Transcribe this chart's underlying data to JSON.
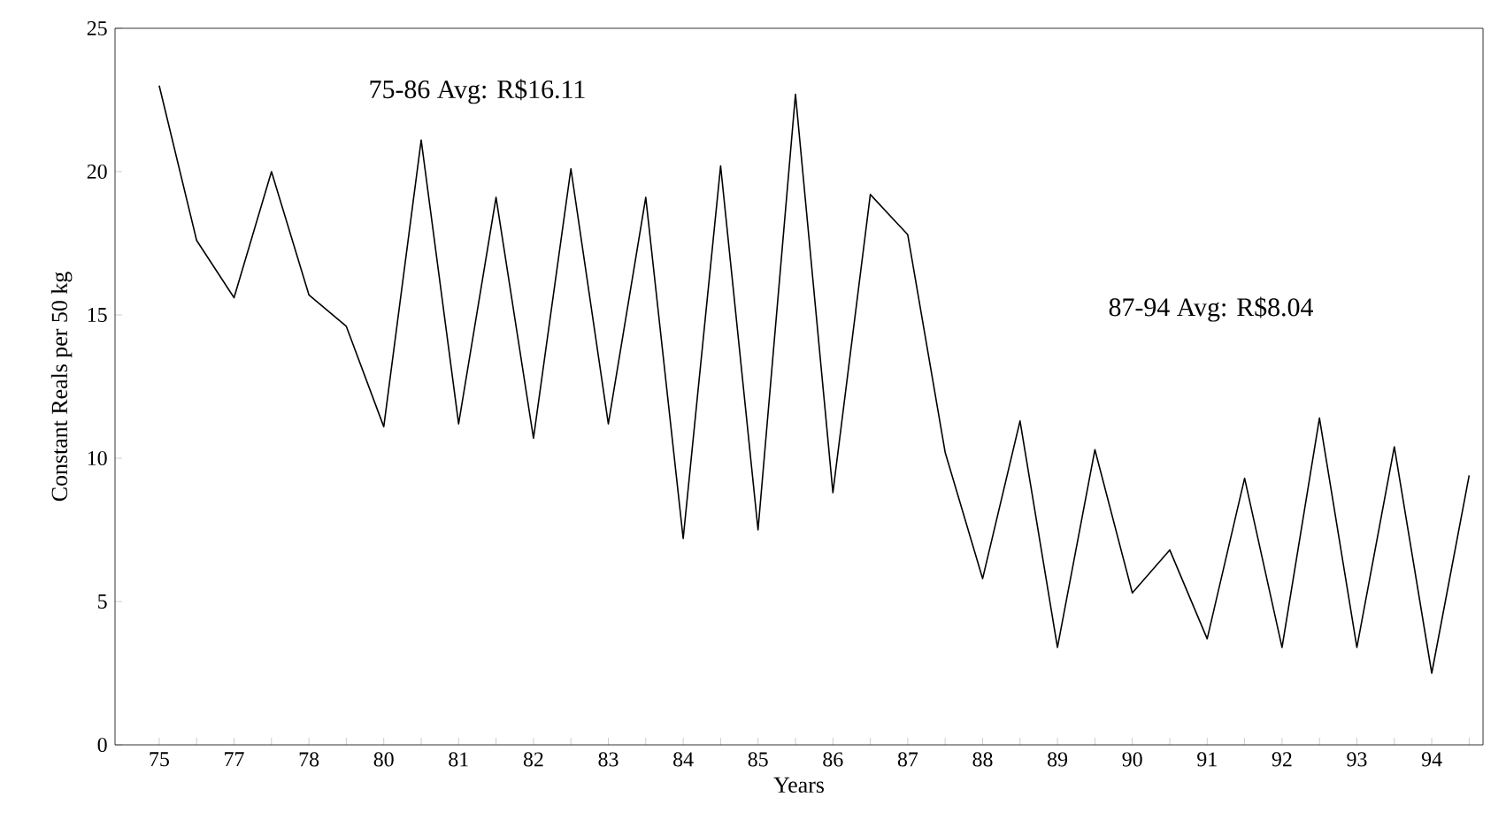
{
  "chart_data": {
    "type": "line",
    "xlabel": "Years",
    "ylabel": "Constant Reals per 50 kg",
    "categories": [
      "75",
      null,
      "77",
      null,
      "78",
      null,
      "80",
      null,
      "81",
      null,
      "82",
      null,
      "83",
      null,
      "84",
      null,
      "85",
      null,
      "86",
      null,
      "87",
      null,
      "88",
      null,
      "89",
      null,
      "90",
      null,
      "91",
      null,
      "92",
      null,
      "93",
      null,
      "94",
      null
    ],
    "values": [
      23.0,
      17.6,
      15.6,
      20.0,
      15.7,
      14.6,
      11.1,
      21.1,
      11.2,
      19.1,
      10.7,
      20.1,
      11.2,
      19.1,
      7.2,
      20.2,
      7.5,
      22.7,
      8.8,
      19.2,
      17.8,
      10.2,
      5.8,
      11.3,
      3.4,
      10.3,
      5.3,
      6.8,
      3.7,
      9.3,
      3.4,
      11.4,
      3.4,
      10.4,
      2.5,
      9.4
    ],
    "color": "#000000",
    "ylim": [
      0,
      25
    ],
    "yticks": [
      0,
      5,
      10,
      15,
      20,
      25
    ],
    "annotations": [
      "75-86 Avg: R$16.11",
      "87-94 Avg: R$8.04"
    ],
    "grid": false,
    "marker": "none",
    "line_style": "solid"
  }
}
